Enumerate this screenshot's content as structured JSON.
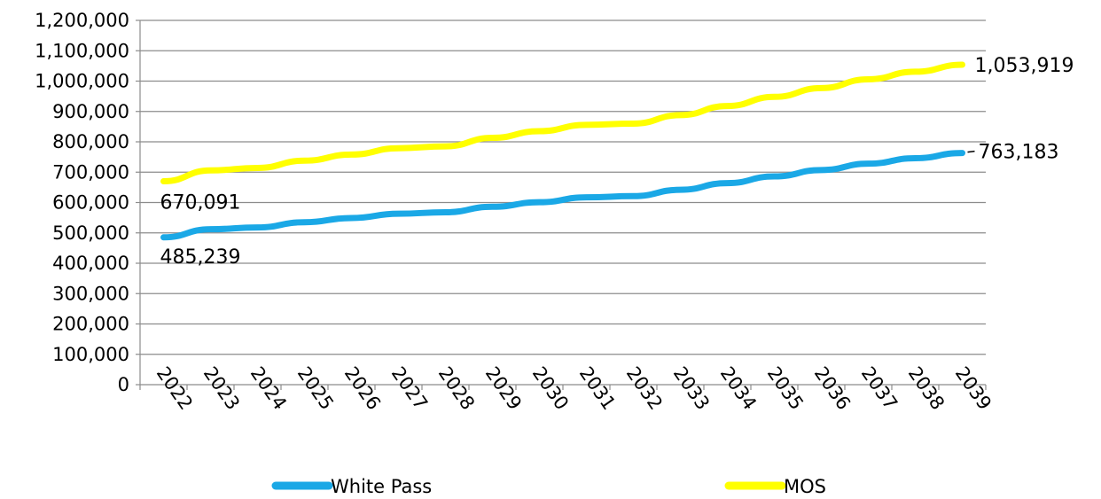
{
  "chart_data": {
    "type": "line",
    "title": "",
    "xlabel": "",
    "ylabel": "",
    "ylim": [
      0,
      1200000
    ],
    "yticks": [
      0,
      100000,
      200000,
      300000,
      400000,
      500000,
      600000,
      700000,
      800000,
      900000,
      1000000,
      1100000,
      1200000
    ],
    "ytick_labels": [
      "0",
      "100,000",
      "200,000",
      "300,000",
      "400,000",
      "500,000",
      "600,000",
      "700,000",
      "800,000",
      "900,000",
      "1,000,000",
      "1,100,000",
      "1,200,000"
    ],
    "grid": "horizontal",
    "legend_position": "bottom",
    "categories": [
      "2022",
      "2023",
      "2024",
      "2025",
      "2026",
      "2027",
      "2028",
      "2029",
      "2030",
      "2031",
      "2032",
      "2033",
      "2034",
      "2035",
      "2036",
      "2037",
      "2038",
      "2039"
    ],
    "series": [
      {
        "name": "White Pass",
        "color": "#1aa8e6",
        "values": [
          485239,
          512000,
          518000,
          535000,
          549000,
          563000,
          568000,
          586000,
          601000,
          617000,
          621000,
          642000,
          664000,
          686000,
          707000,
          728000,
          746000,
          763183
        ],
        "first_label": "485,239",
        "last_label": "763,183"
      },
      {
        "name": "MOS",
        "color": "#ffff00",
        "values": [
          670091,
          706000,
          714000,
          738000,
          758000,
          779000,
          785000,
          813000,
          835000,
          856000,
          860000,
          888000,
          918000,
          948000,
          977000,
          1006000,
          1031000,
          1053919
        ],
        "first_label": "670,091",
        "last_label": "1,053,919"
      }
    ]
  }
}
